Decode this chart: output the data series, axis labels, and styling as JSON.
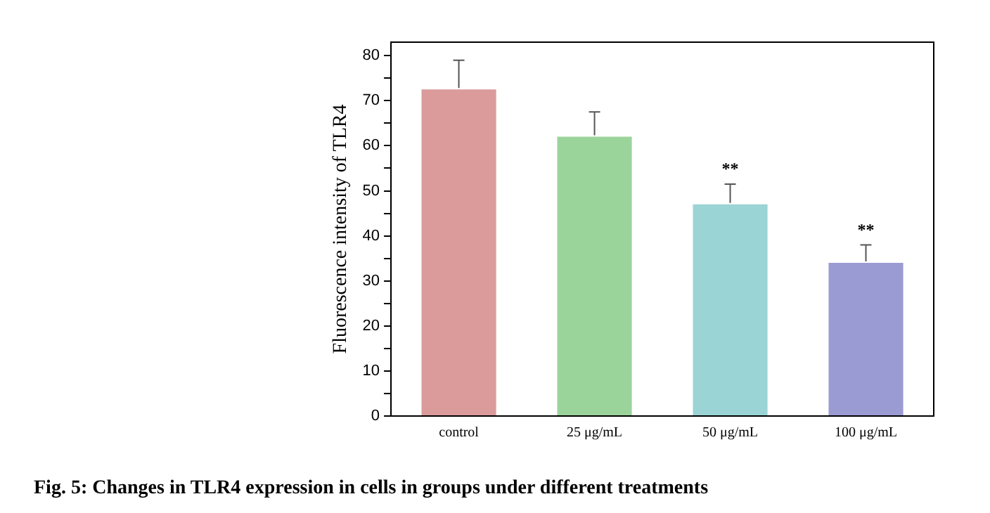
{
  "chart_data": {
    "type": "bar",
    "ylabel": "Fluorescence intensity of TLR4",
    "categories": [
      "control",
      "25 μg/mL",
      "50 μg/mL",
      "100 μg/mL"
    ],
    "values": [
      72.5,
      62,
      47,
      34
    ],
    "errors": [
      6.5,
      5.5,
      4.5,
      4
    ],
    "colors": [
      "#db9b9b",
      "#9bd49b",
      "#9bd4d4",
      "#9b9bd4"
    ],
    "ylim": [
      0,
      83
    ],
    "yticks": [
      0,
      {
        "value": 5,
        "label": null
      },
      10,
      {
        "value": 15,
        "label": null
      },
      20,
      {
        "value": 25,
        "label": null
      },
      30,
      {
        "value": 35,
        "label": null
      },
      40,
      {
        "value": 45,
        "label": null
      },
      50,
      {
        "value": 55,
        "label": null
      },
      60,
      {
        "value": 65,
        "label": null
      },
      70,
      {
        "value": 75,
        "label": null
      },
      80
    ],
    "grid": false,
    "annotations": [
      {
        "text": "**",
        "x": "50 μg/mL",
        "y": 51.5
      },
      {
        "text": "**",
        "x": "100 μg/mL",
        "y": 38
      },
      "Fig. 5: Changes in TLR4 expression in cells in groups under different treatments"
    ]
  }
}
